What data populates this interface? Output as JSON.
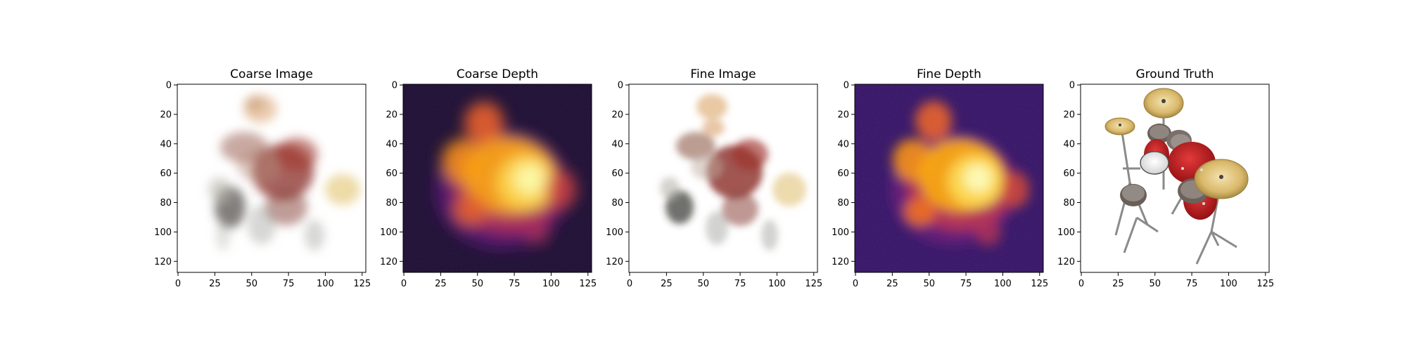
{
  "chart_data": [
    {
      "type": "image",
      "title": "Coarse Image",
      "colormap": "rgb",
      "xlim": [
        0,
        127
      ],
      "ylim": [
        127,
        0
      ],
      "xticks": [
        0,
        25,
        50,
        75,
        100,
        125
      ],
      "yticks": [
        0,
        20,
        40,
        60,
        80,
        100,
        120
      ],
      "xtick_labels": [
        "0",
        "25",
        "50",
        "75",
        "100",
        "125"
      ],
      "ytick_labels": [
        "0",
        "20",
        "40",
        "60",
        "80",
        "100",
        "120"
      ],
      "content": "blurry"
    },
    {
      "type": "heatmap",
      "title": "Coarse Depth",
      "colormap": "inferno",
      "xlim": [
        0,
        127
      ],
      "ylim": [
        127,
        0
      ],
      "xticks": [
        0,
        25,
        50,
        75,
        100,
        125
      ],
      "yticks": [
        0,
        20,
        40,
        60,
        80,
        100,
        120
      ],
      "xtick_labels": [
        "0",
        "25",
        "50",
        "75",
        "100",
        "125"
      ],
      "ytick_labels": [
        "0",
        "20",
        "40",
        "60",
        "80",
        "100",
        "120"
      ],
      "background": "#160b29"
    },
    {
      "type": "image",
      "title": "Fine Image",
      "colormap": "rgb",
      "xlim": [
        0,
        127
      ],
      "ylim": [
        127,
        0
      ],
      "xticks": [
        0,
        25,
        50,
        75,
        100,
        125
      ],
      "yticks": [
        0,
        20,
        40,
        60,
        80,
        100,
        120
      ],
      "xtick_labels": [
        "0",
        "25",
        "50",
        "75",
        "100",
        "125"
      ],
      "ytick_labels": [
        "0",
        "20",
        "40",
        "60",
        "80",
        "100",
        "120"
      ],
      "content": "blurry"
    },
    {
      "type": "heatmap",
      "title": "Fine Depth",
      "colormap": "inferno",
      "xlim": [
        0,
        127
      ],
      "ylim": [
        127,
        0
      ],
      "xticks": [
        0,
        25,
        50,
        75,
        100,
        125
      ],
      "yticks": [
        0,
        20,
        40,
        60,
        80,
        100,
        120
      ],
      "xtick_labels": [
        "0",
        "25",
        "50",
        "75",
        "100",
        "125"
      ],
      "ytick_labels": [
        "0",
        "20",
        "40",
        "60",
        "80",
        "100",
        "120"
      ],
      "background": "#2a0d5a"
    },
    {
      "type": "image",
      "title": "Ground Truth",
      "colormap": "rgb",
      "xlim": [
        0,
        127
      ],
      "ylim": [
        127,
        0
      ],
      "xticks": [
        0,
        25,
        50,
        75,
        100,
        125
      ],
      "yticks": [
        0,
        20,
        40,
        60,
        80,
        100,
        120
      ],
      "xtick_labels": [
        "0",
        "25",
        "50",
        "75",
        "100",
        "125"
      ],
      "ytick_labels": [
        "0",
        "20",
        "40",
        "60",
        "80",
        "100",
        "120"
      ],
      "content": "drum kit"
    }
  ]
}
